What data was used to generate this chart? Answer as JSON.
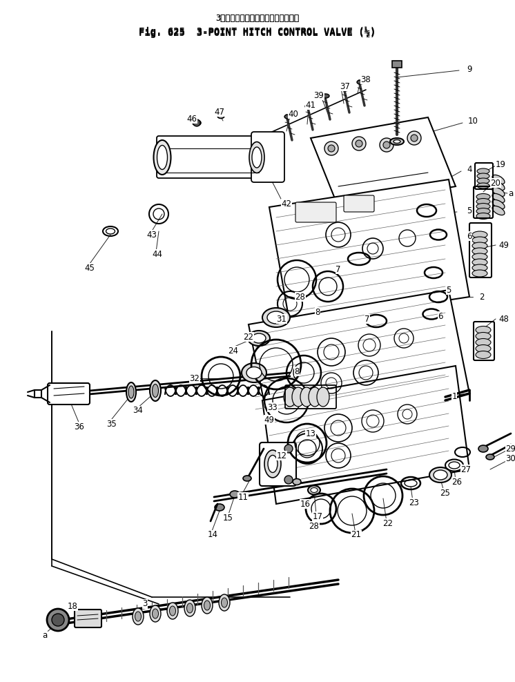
{
  "title_japanese": "3点　ヒッチ　コントロール　バルブ",
  "title_english": "Fig. 625  3-POINT HITCH CONTROL VALVE (½)",
  "background_color": "#ffffff",
  "line_color": "#000000",
  "fig_width": 7.46,
  "fig_height": 9.88,
  "dpi": 100
}
